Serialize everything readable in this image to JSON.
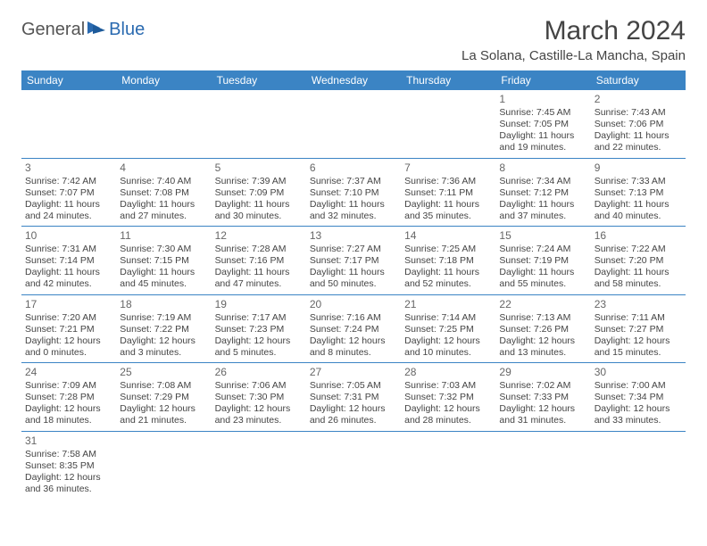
{
  "logo": {
    "text1": "General",
    "text2": "Blue"
  },
  "title": "March 2024",
  "location": "La Solana, Castille-La Mancha, Spain",
  "colors": {
    "header_bg": "#3b84c4",
    "header_fg": "#ffffff",
    "rule": "#3b84c4",
    "logo_blue": "#2a6ab0"
  },
  "daysOfWeek": [
    "Sunday",
    "Monday",
    "Tuesday",
    "Wednesday",
    "Thursday",
    "Friday",
    "Saturday"
  ],
  "weeks": [
    [
      null,
      null,
      null,
      null,
      null,
      {
        "n": "1",
        "sr": "7:45 AM",
        "ss": "7:05 PM",
        "dl": "11 hours and 19 minutes."
      },
      {
        "n": "2",
        "sr": "7:43 AM",
        "ss": "7:06 PM",
        "dl": "11 hours and 22 minutes."
      }
    ],
    [
      {
        "n": "3",
        "sr": "7:42 AM",
        "ss": "7:07 PM",
        "dl": "11 hours and 24 minutes."
      },
      {
        "n": "4",
        "sr": "7:40 AM",
        "ss": "7:08 PM",
        "dl": "11 hours and 27 minutes."
      },
      {
        "n": "5",
        "sr": "7:39 AM",
        "ss": "7:09 PM",
        "dl": "11 hours and 30 minutes."
      },
      {
        "n": "6",
        "sr": "7:37 AM",
        "ss": "7:10 PM",
        "dl": "11 hours and 32 minutes."
      },
      {
        "n": "7",
        "sr": "7:36 AM",
        "ss": "7:11 PM",
        "dl": "11 hours and 35 minutes."
      },
      {
        "n": "8",
        "sr": "7:34 AM",
        "ss": "7:12 PM",
        "dl": "11 hours and 37 minutes."
      },
      {
        "n": "9",
        "sr": "7:33 AM",
        "ss": "7:13 PM",
        "dl": "11 hours and 40 minutes."
      }
    ],
    [
      {
        "n": "10",
        "sr": "7:31 AM",
        "ss": "7:14 PM",
        "dl": "11 hours and 42 minutes."
      },
      {
        "n": "11",
        "sr": "7:30 AM",
        "ss": "7:15 PM",
        "dl": "11 hours and 45 minutes."
      },
      {
        "n": "12",
        "sr": "7:28 AM",
        "ss": "7:16 PM",
        "dl": "11 hours and 47 minutes."
      },
      {
        "n": "13",
        "sr": "7:27 AM",
        "ss": "7:17 PM",
        "dl": "11 hours and 50 minutes."
      },
      {
        "n": "14",
        "sr": "7:25 AM",
        "ss": "7:18 PM",
        "dl": "11 hours and 52 minutes."
      },
      {
        "n": "15",
        "sr": "7:24 AM",
        "ss": "7:19 PM",
        "dl": "11 hours and 55 minutes."
      },
      {
        "n": "16",
        "sr": "7:22 AM",
        "ss": "7:20 PM",
        "dl": "11 hours and 58 minutes."
      }
    ],
    [
      {
        "n": "17",
        "sr": "7:20 AM",
        "ss": "7:21 PM",
        "dl": "12 hours and 0 minutes."
      },
      {
        "n": "18",
        "sr": "7:19 AM",
        "ss": "7:22 PM",
        "dl": "12 hours and 3 minutes."
      },
      {
        "n": "19",
        "sr": "7:17 AM",
        "ss": "7:23 PM",
        "dl": "12 hours and 5 minutes."
      },
      {
        "n": "20",
        "sr": "7:16 AM",
        "ss": "7:24 PM",
        "dl": "12 hours and 8 minutes."
      },
      {
        "n": "21",
        "sr": "7:14 AM",
        "ss": "7:25 PM",
        "dl": "12 hours and 10 minutes."
      },
      {
        "n": "22",
        "sr": "7:13 AM",
        "ss": "7:26 PM",
        "dl": "12 hours and 13 minutes."
      },
      {
        "n": "23",
        "sr": "7:11 AM",
        "ss": "7:27 PM",
        "dl": "12 hours and 15 minutes."
      }
    ],
    [
      {
        "n": "24",
        "sr": "7:09 AM",
        "ss": "7:28 PM",
        "dl": "12 hours and 18 minutes."
      },
      {
        "n": "25",
        "sr": "7:08 AM",
        "ss": "7:29 PM",
        "dl": "12 hours and 21 minutes."
      },
      {
        "n": "26",
        "sr": "7:06 AM",
        "ss": "7:30 PM",
        "dl": "12 hours and 23 minutes."
      },
      {
        "n": "27",
        "sr": "7:05 AM",
        "ss": "7:31 PM",
        "dl": "12 hours and 26 minutes."
      },
      {
        "n": "28",
        "sr": "7:03 AM",
        "ss": "7:32 PM",
        "dl": "12 hours and 28 minutes."
      },
      {
        "n": "29",
        "sr": "7:02 AM",
        "ss": "7:33 PM",
        "dl": "12 hours and 31 minutes."
      },
      {
        "n": "30",
        "sr": "7:00 AM",
        "ss": "7:34 PM",
        "dl": "12 hours and 33 minutes."
      }
    ],
    [
      {
        "n": "31",
        "sr": "7:58 AM",
        "ss": "8:35 PM",
        "dl": "12 hours and 36 minutes."
      },
      null,
      null,
      null,
      null,
      null,
      null
    ]
  ],
  "labels": {
    "sunrise": "Sunrise: ",
    "sunset": "Sunset: ",
    "daylight": "Daylight: "
  }
}
